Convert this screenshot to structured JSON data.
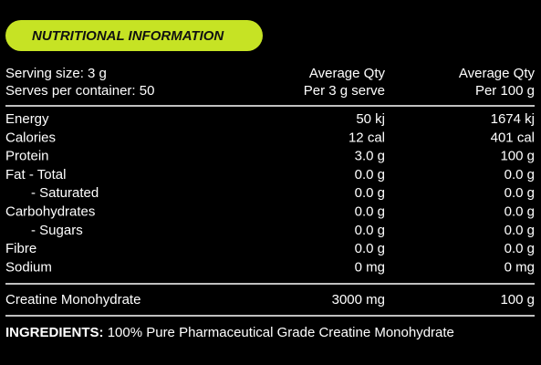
{
  "header": {
    "title": "NUTRITIONAL INFORMATION"
  },
  "table": {
    "header": [
      [
        "Serving size: 3 g",
        "Average Qty",
        "Average Qty"
      ],
      [
        "Serves per container: 50",
        "Per 3 g serve",
        "Per 100 g"
      ]
    ],
    "rows": [
      [
        "Energy",
        "50 kj",
        "1674 kj"
      ],
      [
        "Calories",
        "12 cal",
        "401 cal"
      ],
      [
        "Protein",
        "3.0 g",
        "100 g"
      ],
      [
        "Fat - Total",
        "0.0 g",
        "0.0 g"
      ],
      [
        "- Saturated",
        "0.0 g",
        "0.0 g"
      ],
      [
        "Carbohydrates",
        "0.0 g",
        "0.0 g"
      ],
      [
        "- Sugars",
        "0.0 g",
        "0.0 g"
      ],
      [
        "Fibre",
        "0.0 g",
        "0.0 g"
      ],
      [
        "Sodium",
        "0 mg",
        "0 mg"
      ]
    ],
    "footer": [
      "Creatine Monohydrate",
      "3000 mg",
      "100 g"
    ]
  },
  "ingredients": {
    "label": "INGREDIENTS:",
    "text": "100% Pure Pharmaceutical Grade Creatine Monohydrate"
  }
}
